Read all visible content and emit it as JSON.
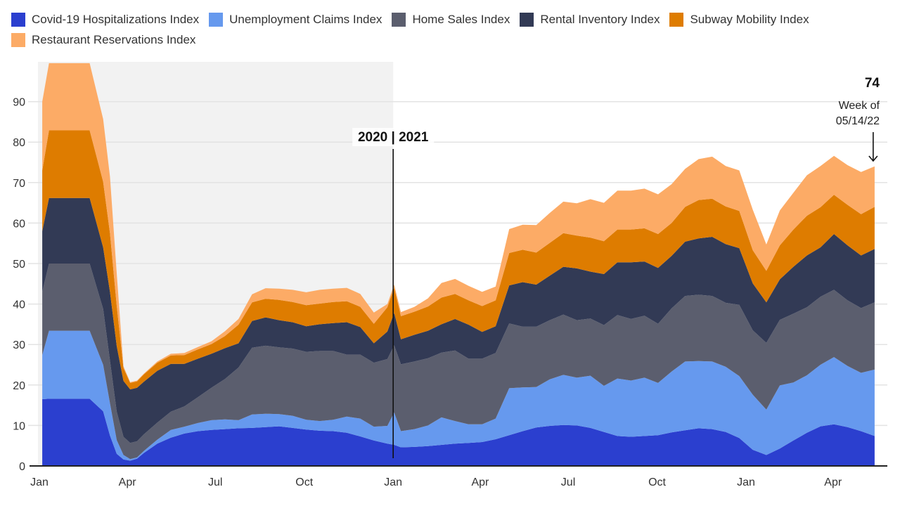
{
  "chart_data": {
    "type": "area",
    "stacked": true,
    "title": "",
    "xlabel": "",
    "ylabel": "",
    "ylim": [
      0,
      100
    ],
    "yticks": [
      0,
      10,
      20,
      30,
      40,
      50,
      60,
      70,
      80,
      90
    ],
    "xticks": [
      {
        "label": "Jan",
        "date": "2020-01-01"
      },
      {
        "label": "Apr",
        "date": "2020-04-01"
      },
      {
        "label": "Jul",
        "date": "2020-07-01"
      },
      {
        "label": "Oct",
        "date": "2020-10-01"
      },
      {
        "label": "Jan",
        "date": "2021-01-01"
      },
      {
        "label": "Apr",
        "date": "2021-04-01"
      },
      {
        "label": "Jul",
        "date": "2021-07-01"
      },
      {
        "label": "Oct",
        "date": "2021-10-01"
      },
      {
        "label": "Jan",
        "date": "2022-01-01"
      },
      {
        "label": "Apr",
        "date": "2022-04-01"
      }
    ],
    "xrange": [
      "2020-01-01",
      "2022-05-31"
    ],
    "grid": true,
    "legend_position": "top",
    "shaded_region": {
      "from": "2019-12-28",
      "to": "2021-01-01",
      "color": "#f2f2f2"
    },
    "year_divider": {
      "date": "2021-01-01",
      "label": "2020 | 2021"
    },
    "latest_annotation": {
      "value": "74",
      "line1": "Week of",
      "line2": "05/14/22",
      "date": "2022-05-14"
    },
    "dates": [
      "2020-01-04",
      "2020-01-11",
      "2020-01-25",
      "2020-02-08",
      "2020-02-22",
      "2020-03-07",
      "2020-03-14",
      "2020-03-21",
      "2020-03-28",
      "2020-04-04",
      "2020-04-11",
      "2020-04-18",
      "2020-05-02",
      "2020-05-16",
      "2020-05-30",
      "2020-06-13",
      "2020-06-27",
      "2020-07-11",
      "2020-07-25",
      "2020-08-08",
      "2020-08-22",
      "2020-09-05",
      "2020-09-19",
      "2020-10-03",
      "2020-10-17",
      "2020-10-31",
      "2020-11-14",
      "2020-11-28",
      "2020-12-12",
      "2020-12-26",
      "2021-01-02",
      "2021-01-09",
      "2021-01-23",
      "2021-02-06",
      "2021-02-20",
      "2021-03-06",
      "2021-03-20",
      "2021-04-03",
      "2021-04-17",
      "2021-05-01",
      "2021-05-15",
      "2021-05-29",
      "2021-06-12",
      "2021-06-26",
      "2021-07-10",
      "2021-07-24",
      "2021-08-07",
      "2021-08-21",
      "2021-09-04",
      "2021-09-18",
      "2021-10-02",
      "2021-10-16",
      "2021-10-30",
      "2021-11-13",
      "2021-11-27",
      "2021-12-11",
      "2021-12-25",
      "2022-01-08",
      "2022-01-22",
      "2022-02-05",
      "2022-02-19",
      "2022-03-05",
      "2022-03-19",
      "2022-04-02",
      "2022-04-16",
      "2022-04-30",
      "2022-05-14"
    ],
    "series": [
      {
        "name": "Covid-19 Hospitalizations Index",
        "color": "#2b3fcf",
        "values": [
          16.5,
          16.6,
          16.6,
          16.6,
          16.6,
          13.5,
          7.5,
          3.0,
          1.6,
          1.3,
          1.8,
          3.2,
          5.5,
          7.0,
          8.0,
          8.6,
          8.9,
          9.1,
          9.3,
          9.4,
          9.6,
          9.8,
          9.4,
          9.0,
          8.7,
          8.6,
          8.2,
          7.3,
          6.3,
          5.5,
          5.2,
          4.6,
          4.7,
          4.9,
          5.2,
          5.5,
          5.7,
          5.9,
          6.6,
          7.6,
          8.6,
          9.5,
          9.9,
          10.1,
          10.0,
          9.4,
          8.4,
          7.4,
          7.2,
          7.4,
          7.6,
          8.3,
          8.8,
          9.3,
          9.1,
          8.4,
          6.9,
          4.0,
          2.7,
          4.3,
          6.3,
          8.2,
          9.8,
          10.3,
          9.6,
          8.6,
          7.4
        ]
      },
      {
        "name": "Unemployment Claims Index",
        "color": "#6699ee",
        "values": [
          10.9,
          16.8,
          16.8,
          16.8,
          16.8,
          11.5,
          8.0,
          3.4,
          1.1,
          0.4,
          0.3,
          0.5,
          1.0,
          1.9,
          1.7,
          2.0,
          2.4,
          2.4,
          2.0,
          3.3,
          3.3,
          3.0,
          3.0,
          2.4,
          2.4,
          2.8,
          4.0,
          4.4,
          3.4,
          4.4,
          8.0,
          4.0,
          4.4,
          5.1,
          6.8,
          5.6,
          4.6,
          4.4,
          5.1,
          11.6,
          10.8,
          10.0,
          11.5,
          12.4,
          11.8,
          12.9,
          11.4,
          14.2,
          13.9,
          14.4,
          12.9,
          15.0,
          17.0,
          16.6,
          16.7,
          16.1,
          15.3,
          13.6,
          11.2,
          15.6,
          14.3,
          14.2,
          15.2,
          16.6,
          15.1,
          14.4,
          16.4
        ]
      },
      {
        "name": "Home Sales Index",
        "color": "#5b5e6e",
        "values": [
          15.6,
          16.6,
          16.6,
          16.6,
          16.6,
          13.8,
          10.5,
          7.0,
          4.5,
          4.0,
          4.0,
          4.1,
          4.2,
          4.5,
          5.0,
          6.4,
          8.0,
          10.0,
          13.0,
          16.5,
          16.8,
          16.5,
          16.6,
          16.8,
          17.3,
          17.0,
          15.3,
          15.8,
          15.8,
          16.5,
          16.6,
          16.5,
          16.7,
          16.6,
          16.0,
          17.4,
          16.2,
          16.2,
          16.2,
          16.0,
          15.0,
          14.9,
          14.6,
          14.9,
          14.2,
          14.1,
          15.0,
          15.7,
          15.2,
          15.3,
          14.6,
          15.6,
          16.2,
          16.4,
          16.2,
          15.8,
          17.6,
          15.9,
          16.5,
          16.2,
          17.0,
          16.8,
          16.8,
          16.6,
          16.2,
          16.0,
          16.6
        ]
      },
      {
        "name": "Rental Inventory Index",
        "color": "#323a55",
        "values": [
          15.0,
          16.2,
          16.2,
          16.2,
          16.2,
          15.2,
          17.0,
          16.2,
          13.8,
          13.2,
          13.2,
          13.0,
          12.8,
          11.8,
          10.5,
          9.5,
          8.4,
          7.6,
          6.0,
          6.6,
          7.0,
          6.7,
          6.5,
          6.3,
          6.6,
          6.9,
          8.0,
          6.8,
          4.8,
          6.8,
          8.0,
          6.2,
          6.6,
          6.8,
          7.0,
          7.8,
          8.4,
          6.6,
          6.6,
          9.4,
          11.0,
          10.4,
          11.0,
          11.8,
          12.8,
          11.6,
          12.6,
          13.0,
          14.0,
          13.4,
          13.8,
          13.0,
          13.4,
          13.9,
          14.6,
          14.5,
          14.0,
          11.6,
          10.0,
          10.0,
          11.6,
          12.8,
          12.2,
          13.8,
          13.6,
          13.0,
          13.2
        ]
      },
      {
        "name": "Subway Mobility Index",
        "color": "#de7c00",
        "values": [
          15.0,
          16.7,
          16.7,
          16.7,
          16.7,
          16.2,
          14.5,
          10.0,
          3.2,
          1.6,
          1.6,
          1.8,
          2.0,
          2.1,
          2.2,
          2.3,
          2.4,
          3.0,
          4.6,
          4.6,
          4.6,
          5.0,
          5.0,
          5.2,
          5.1,
          5.2,
          5.2,
          5.0,
          4.8,
          6.0,
          6.2,
          5.7,
          5.7,
          6.0,
          6.6,
          6.2,
          6.0,
          6.4,
          6.4,
          8.0,
          8.0,
          7.9,
          8.1,
          8.3,
          8.1,
          8.4,
          8.1,
          8.1,
          8.1,
          8.2,
          8.4,
          8.1,
          8.6,
          9.5,
          9.4,
          9.3,
          9.2,
          8.2,
          7.8,
          8.4,
          9.2,
          9.8,
          9.9,
          9.7,
          10.0,
          10.2,
          10.4
        ]
      },
      {
        "name": "Restaurant Reservations Index",
        "color": "#fcab66",
        "values": [
          17.0,
          16.6,
          16.6,
          16.6,
          16.6,
          15.5,
          14.0,
          8.0,
          0.4,
          0.2,
          0.2,
          0.2,
          0.3,
          0.4,
          0.5,
          0.6,
          0.7,
          1.2,
          1.4,
          2.0,
          2.6,
          2.8,
          3.0,
          3.2,
          3.4,
          3.3,
          3.3,
          3.2,
          2.8,
          0.8,
          0.8,
          1.0,
          1.2,
          2.0,
          3.6,
          3.7,
          3.6,
          3.5,
          3.4,
          5.9,
          6.2,
          6.8,
          7.4,
          7.8,
          8.0,
          9.5,
          9.5,
          9.6,
          9.6,
          9.8,
          9.8,
          9.6,
          9.4,
          10.1,
          10.4,
          10.0,
          10.0,
          10.0,
          6.5,
          8.6,
          9.1,
          10.0,
          10.2,
          9.6,
          9.8,
          10.4,
          10.0
        ]
      }
    ]
  }
}
